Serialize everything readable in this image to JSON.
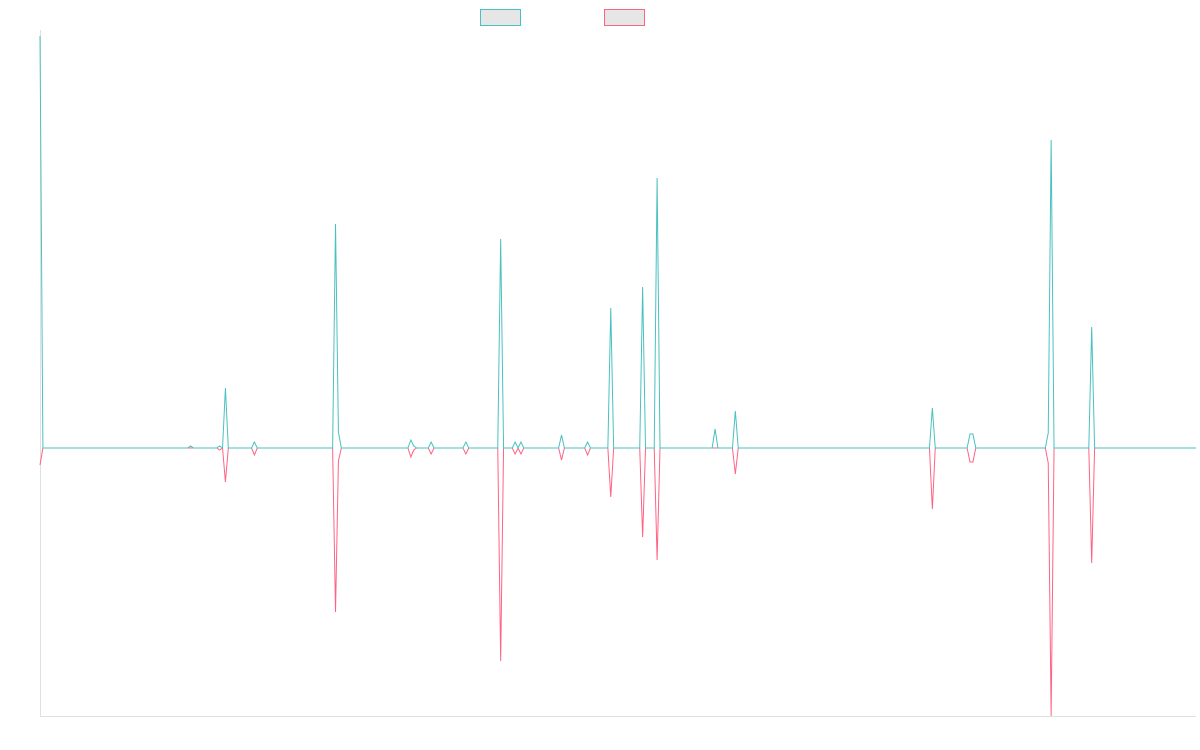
{
  "chart_data": {
    "type": "line",
    "title": "",
    "xlabel": "",
    "ylabel": "",
    "grid": false,
    "legend_position": "top-center",
    "x_count": 400,
    "xlim": [
      0,
      399
    ],
    "ylim": [
      -268,
      412
    ],
    "series": [
      {
        "color": "#4bc0c0",
        "fill": "#e6e6e6",
        "points": [
          [
            0,
            412
          ],
          [
            1,
            0
          ],
          [
            52,
            2
          ],
          [
            62,
            2
          ],
          [
            64,
            60
          ],
          [
            65,
            0
          ],
          [
            74,
            6
          ],
          [
            102,
            224
          ],
          [
            103,
            16
          ],
          [
            104,
            0
          ],
          [
            128,
            8
          ],
          [
            129,
            2
          ],
          [
            135,
            6
          ],
          [
            147,
            6
          ],
          [
            159,
            209
          ],
          [
            160,
            0
          ],
          [
            164,
            6
          ],
          [
            166,
            6
          ],
          [
            180,
            13
          ],
          [
            189,
            6
          ],
          [
            197,
            140
          ],
          [
            198,
            0
          ],
          [
            208,
            161
          ],
          [
            213,
            270
          ],
          [
            214,
            0
          ],
          [
            233,
            19
          ],
          [
            240,
            37
          ],
          [
            241,
            0
          ],
          [
            308,
            40
          ],
          [
            309,
            0
          ],
          [
            321,
            14
          ],
          [
            322,
            14
          ],
          [
            323,
            0
          ],
          [
            348,
            15
          ],
          [
            349,
            308
          ],
          [
            350,
            0
          ],
          [
            363,
            121
          ],
          [
            364,
            0
          ],
          [
            399,
            0
          ]
        ]
      },
      {
        "color": "#ff6384",
        "fill": "#e6e6e6",
        "points": [
          [
            0,
            -17
          ],
          [
            1,
            0
          ],
          [
            52,
            0
          ],
          [
            62,
            -2
          ],
          [
            64,
            -34
          ],
          [
            65,
            0
          ],
          [
            74,
            -7
          ],
          [
            102,
            -164
          ],
          [
            103,
            -13
          ],
          [
            104,
            0
          ],
          [
            128,
            -9
          ],
          [
            129,
            -2
          ],
          [
            135,
            -6
          ],
          [
            147,
            -6
          ],
          [
            159,
            -213
          ],
          [
            160,
            0
          ],
          [
            164,
            -6
          ],
          [
            166,
            -6
          ],
          [
            180,
            -12
          ],
          [
            189,
            -7
          ],
          [
            197,
            -49
          ],
          [
            198,
            0
          ],
          [
            208,
            -89
          ],
          [
            213,
            -112
          ],
          [
            214,
            0
          ],
          [
            240,
            -26
          ],
          [
            241,
            0
          ],
          [
            308,
            -61
          ],
          [
            309,
            0
          ],
          [
            321,
            -14
          ],
          [
            322,
            -14
          ],
          [
            323,
            0
          ],
          [
            348,
            -15
          ],
          [
            349,
            -268
          ],
          [
            350,
            0
          ],
          [
            363,
            -115
          ],
          [
            364,
            0
          ],
          [
            399,
            0
          ]
        ]
      }
    ]
  }
}
